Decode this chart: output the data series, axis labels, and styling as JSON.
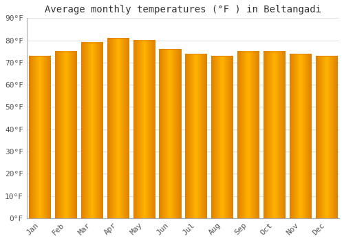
{
  "title": "Average monthly temperatures (°F ) in Beltangadi",
  "months": [
    "Jan",
    "Feb",
    "Mar",
    "Apr",
    "May",
    "Jun",
    "Jul",
    "Aug",
    "Sep",
    "Oct",
    "Nov",
    "Dec"
  ],
  "values": [
    73,
    75,
    79,
    81,
    80,
    76,
    74,
    73,
    75,
    75,
    74,
    73
  ],
  "bar_color_center": "#FFB300",
  "bar_color_edge": "#E08000",
  "background_color": "#ffffff",
  "plot_bg_color": "#ffffff",
  "ylim": [
    0,
    90
  ],
  "yticks": [
    0,
    10,
    20,
    30,
    40,
    50,
    60,
    70,
    80,
    90
  ],
  "ytick_labels": [
    "0°F",
    "10°F",
    "20°F",
    "30°F",
    "40°F",
    "50°F",
    "60°F",
    "70°F",
    "80°F",
    "90°F"
  ],
  "title_fontsize": 10,
  "tick_fontsize": 8,
  "grid_color": "#e0e0e0",
  "spine_color": "#aaaaaa",
  "bar_width": 0.82
}
